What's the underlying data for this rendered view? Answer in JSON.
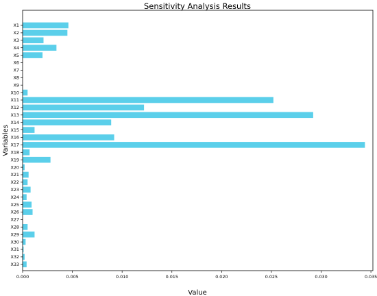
{
  "chart_data": {
    "type": "bar",
    "orientation": "horizontal",
    "title": "Sensitivity Analysis Results",
    "xlabel": "Value",
    "ylabel": "Variables",
    "xlim": [
      0,
      0.0352
    ],
    "xticks": [
      "0.000",
      "0.005",
      "0.010",
      "0.015",
      "0.020",
      "0.025",
      "0.030",
      "0.035"
    ],
    "categories": [
      "X1",
      "X2",
      "X3",
      "X4",
      "X5",
      "X6",
      "X7",
      "X8",
      "X9",
      "X10",
      "X11",
      "X12",
      "X13",
      "X14",
      "X15",
      "X16",
      "X17",
      "X18",
      "X19",
      "X20",
      "X21",
      "X22",
      "X23",
      "X24",
      "X25",
      "X26",
      "X27",
      "X28",
      "X29",
      "X30",
      "X31",
      "X32",
      "X33"
    ],
    "values": [
      0.0046,
      0.0045,
      0.0021,
      0.0034,
      0.002,
      0.0,
      0.0,
      0.0,
      0.0,
      0.0005,
      0.0252,
      0.0122,
      0.0292,
      0.0089,
      0.0012,
      0.0092,
      0.0344,
      0.0007,
      0.0028,
      0.0002,
      0.0006,
      0.0005,
      0.0008,
      0.0004,
      0.0009,
      0.001,
      0.0,
      0.0005,
      0.0012,
      0.0003,
      0.0001,
      0.0002,
      0.0004
    ],
    "bar_color": "#5bcfea",
    "grid": false,
    "legend": "none"
  }
}
